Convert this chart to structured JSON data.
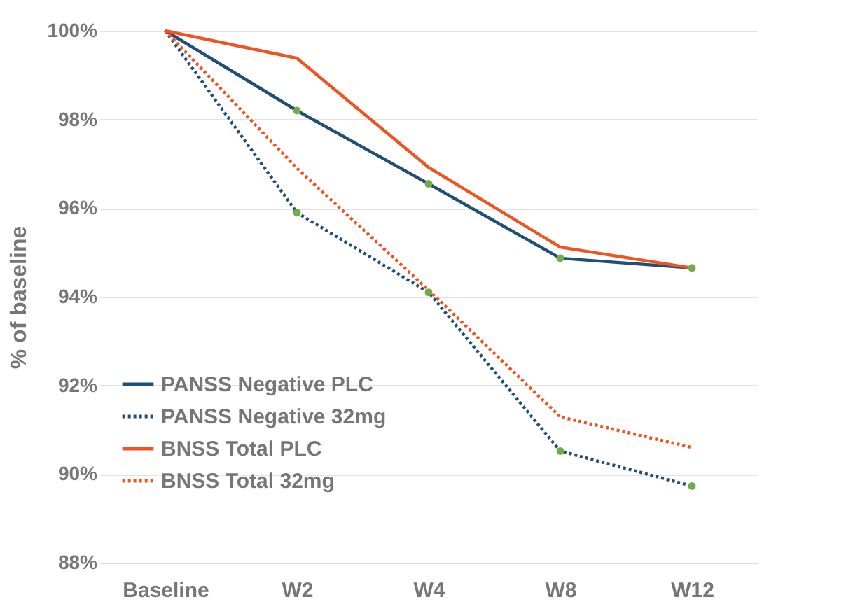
{
  "chart_data": {
    "type": "line",
    "ylabel": "% of baseline",
    "categories": [
      "Baseline",
      "W2",
      "W4",
      "W8",
      "W12"
    ],
    "series": [
      {
        "name": "PANSS Negative PLC",
        "color": "#1f4e79",
        "line_style": "solid",
        "marker": "circle",
        "values": [
          100,
          98.2,
          96.55,
          94.87,
          94.65
        ]
      },
      {
        "name": "PANSS Negative 32mg",
        "color": "#1f4e79",
        "line_style": "dotted",
        "marker": "circle",
        "values": [
          100,
          95.9,
          94.1,
          90.52,
          89.73
        ]
      },
      {
        "name": "BNSS Total PLC",
        "color": "#f0531f",
        "line_style": "solid",
        "values": [
          100,
          99.38,
          96.92,
          95.12,
          94.65
        ]
      },
      {
        "name": "BNSS Total 32mg",
        "color": "#f0531f",
        "line_style": "dotted",
        "values": [
          100,
          96.9,
          94.15,
          91.29,
          90.6
        ]
      }
    ],
    "ylim": [
      88,
      100
    ],
    "yticks": [
      {
        "value": 88,
        "label": "88%"
      },
      {
        "value": 90,
        "label": "90%"
      },
      {
        "value": 92,
        "label": "92%"
      },
      {
        "value": 94,
        "label": "94%"
      },
      {
        "value": 96,
        "label": "96%"
      },
      {
        "value": 98,
        "label": "98%"
      },
      {
        "value": 100,
        "label": "100%"
      }
    ],
    "grid": "y",
    "legend": "left"
  }
}
